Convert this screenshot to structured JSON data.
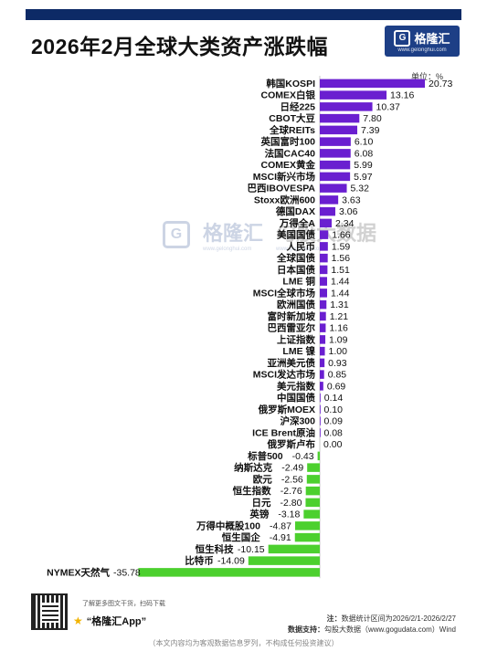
{
  "header": {
    "title": "2026年2月全球大类资产涨跌幅",
    "brand_name": "格隆汇",
    "brand_url": "www.gelonghui.com",
    "unit_label": "单位：%"
  },
  "watermark": {
    "left_text": "格隆汇",
    "left_sub": "www.gelonghui.com",
    "right_text": "勾股大数据",
    "right_sub": "www.gogudata.com"
  },
  "colors": {
    "positive": "#6a1fd0",
    "negative": "#4cd02e",
    "top_bar": "#0d2a66",
    "brand": "#1d3f86"
  },
  "chart_data": {
    "type": "bar",
    "orientation": "horizontal",
    "categories": [
      "韩国KOSPI",
      "COMEX白银",
      "日经225",
      "CBOT大豆",
      "全球REITs",
      "英国富时100",
      "法国CAC40",
      "COMEX黄金",
      "MSCI新兴市场",
      "巴西IBOVESPA",
      "Stoxx欧洲600",
      "德国DAX",
      "万得全A",
      "美国国债",
      "人民币",
      "全球国债",
      "日本国债",
      "LME 铜",
      "MSCI全球市场",
      "欧洲国债",
      "富时新加坡",
      "巴西雷亚尔",
      "上证指数",
      "LME 镍",
      "亚洲美元债",
      "MSCI发达市场",
      "美元指数",
      "中国国债",
      "俄罗斯MOEX",
      "沪深300",
      "ICE Brent原油",
      "俄罗斯卢布",
      "标普500",
      "纳斯达克",
      "欧元",
      "恒生指数",
      "日元",
      "英镑",
      "万得中概股100",
      "恒生国企",
      "恒生科技",
      "比特币",
      "NYMEX天然气"
    ],
    "values": [
      20.73,
      13.16,
      10.37,
      7.8,
      7.39,
      6.1,
      6.08,
      5.99,
      5.97,
      5.32,
      3.63,
      3.06,
      2.34,
      1.66,
      1.59,
      1.56,
      1.51,
      1.44,
      1.44,
      1.31,
      1.21,
      1.16,
      1.09,
      1.0,
      0.93,
      0.85,
      0.69,
      0.14,
      0.1,
      0.09,
      0.08,
      0.0,
      -0.43,
      -2.49,
      -2.56,
      -2.76,
      -2.8,
      -3.18,
      -4.87,
      -4.91,
      -10.15,
      -14.09,
      -35.78
    ],
    "labels": [
      "20.73",
      "13.16",
      "10.37",
      "7.80",
      "7.39",
      "6.10",
      "6.08",
      "5.99",
      "5.97",
      "5.32",
      "3.63",
      "3.06",
      "2.34",
      "1.66",
      "1.59",
      "1.56",
      "1.51",
      "1.44",
      "1.44",
      "1.31",
      "1.21",
      "1.16",
      "1.09",
      "1.00",
      "0.93",
      "0.85",
      "0.69",
      "0.14",
      "0.10",
      "0.09",
      "0.08",
      "0.00",
      "-0.43",
      "-2.49",
      "-2.56",
      "-2.76",
      "-2.80",
      "-3.18",
      "-4.87",
      "-4.91",
      "-10.15",
      "-14.09",
      "-35.78"
    ],
    "xlim": [
      -35.78,
      20.73
    ],
    "grid": false,
    "legend": "none"
  },
  "footer": {
    "hint": "了解更多图文干货，扫码下载",
    "app_name": "“格隆汇App”",
    "note_label": "注：",
    "note_text": "数据统计区间为2026/2/1-2026/2/27",
    "support_label": "数据支持：",
    "support_text": "勾股大数据（www.gogudata.com）Wind",
    "disclaimer": "（本文内容均为客观数据信息罗列，不构成任何投资建议）"
  }
}
